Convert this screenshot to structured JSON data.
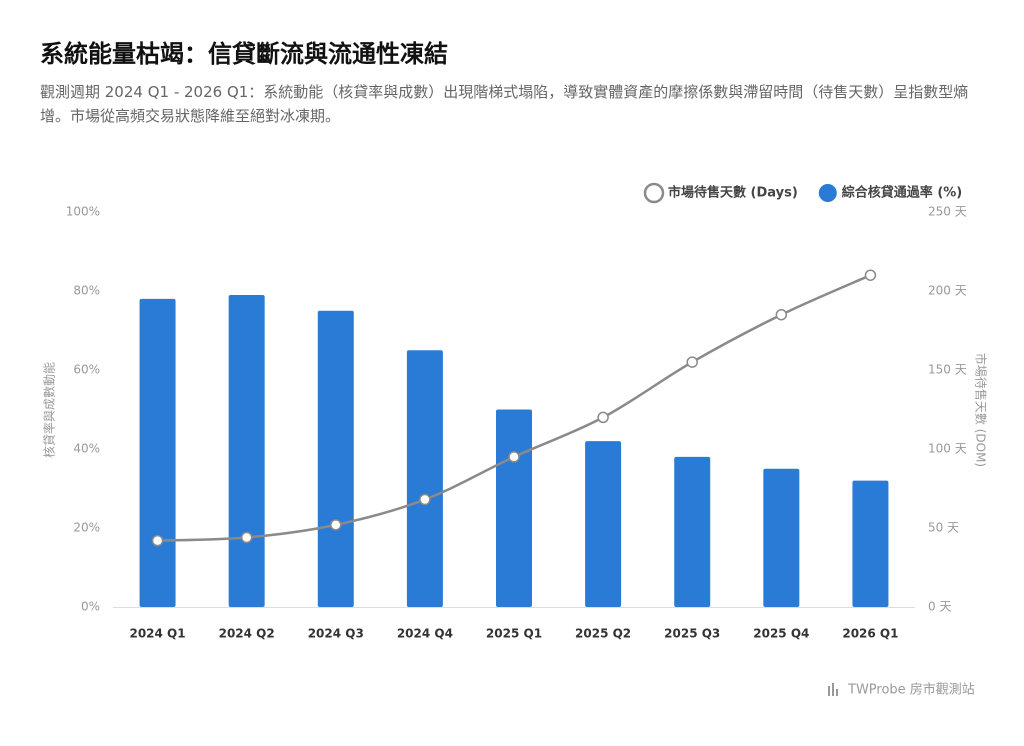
{
  "title": "系統能量枯竭：信貸斷流與流通性凍結",
  "subtitle": "觀測週期 2024 Q1 - 2026 Q1：系統動能（核貸率與成數）出現階梯式塌陷，導致實體資產的摩擦係數與滯留時間（待售天數）呈指數型熵增。市場從高頻交易狀態降維至絕對冰凍期。",
  "footer": "TWProbe 房市觀測站",
  "chart_data": {
    "type": "bar",
    "categories": [
      "2024 Q1",
      "2024 Q2",
      "2024 Q3",
      "2024 Q4",
      "2025 Q1",
      "2025 Q2",
      "2025 Q3",
      "2025 Q4",
      "2026 Q1"
    ],
    "series": [
      {
        "name": "市場待售天數 (Days)",
        "type": "line",
        "axis": "y2",
        "color": "#8a8a8a",
        "values": [
          42,
          44,
          52,
          68,
          95,
          120,
          155,
          185,
          210
        ]
      },
      {
        "name": "綜合核貸通過率 (%)",
        "type": "bar",
        "color": "#2a7bd6",
        "values": [
          78,
          79,
          75,
          65,
          50,
          42,
          38,
          35,
          32
        ]
      }
    ],
    "ylabel": "核貸率與成數動能",
    "y2label": "市場待售天數 (DOM)",
    "ylim": [
      0,
      100
    ],
    "yticks": [
      {
        "value": 0,
        "label": "0%"
      },
      {
        "value": 20,
        "label": "20%"
      },
      {
        "value": 40,
        "label": "40%"
      },
      {
        "value": 60,
        "label": "60%"
      },
      {
        "value": 80,
        "label": "80%"
      },
      {
        "value": 100,
        "label": "100%"
      }
    ],
    "y2lim": [
      0,
      250
    ],
    "y2ticks": [
      {
        "value": 0,
        "label": "0 天"
      },
      {
        "value": 50,
        "label": "50 天"
      },
      {
        "value": 100,
        "label": "100 天"
      },
      {
        "value": 150,
        "label": "150 天"
      },
      {
        "value": 200,
        "label": "200 天"
      },
      {
        "value": 250,
        "label": "250 天"
      }
    ],
    "grid": false,
    "legend": "top-right"
  }
}
